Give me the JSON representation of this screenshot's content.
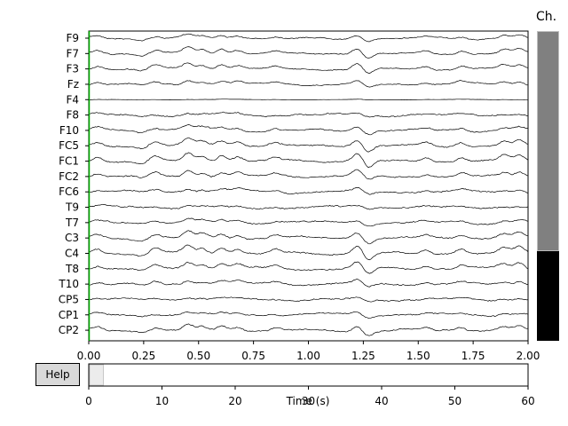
{
  "main": {
    "channels": [
      "F9",
      "F7",
      "F3",
      "Fz",
      "F4",
      "F8",
      "F10",
      "FC5",
      "FC1",
      "FC2",
      "FC6",
      "T9",
      "T7",
      "C3",
      "C4",
      "T8",
      "T10",
      "CP5",
      "CP1",
      "CP2"
    ],
    "x_ticks": [
      "0.00",
      "0.25",
      "0.50",
      "0.75",
      "1.00",
      "1.25",
      "1.50",
      "1.75",
      "2.00"
    ],
    "x_range": [
      0,
      2
    ],
    "colors": {
      "trace": "#000000",
      "marker": "#00aa00",
      "frame": "#000000"
    }
  },
  "overview": {
    "x_ticks": [
      "0",
      "10",
      "20",
      "30",
      "40",
      "50",
      "60"
    ],
    "x_range": [
      0,
      60
    ],
    "xlabel": "Time (s)",
    "window": [
      0,
      2
    ]
  },
  "help_button": {
    "label": "Help"
  },
  "channel_scroll": {
    "title": "Ch.",
    "visible_fraction": 0.71
  }
}
